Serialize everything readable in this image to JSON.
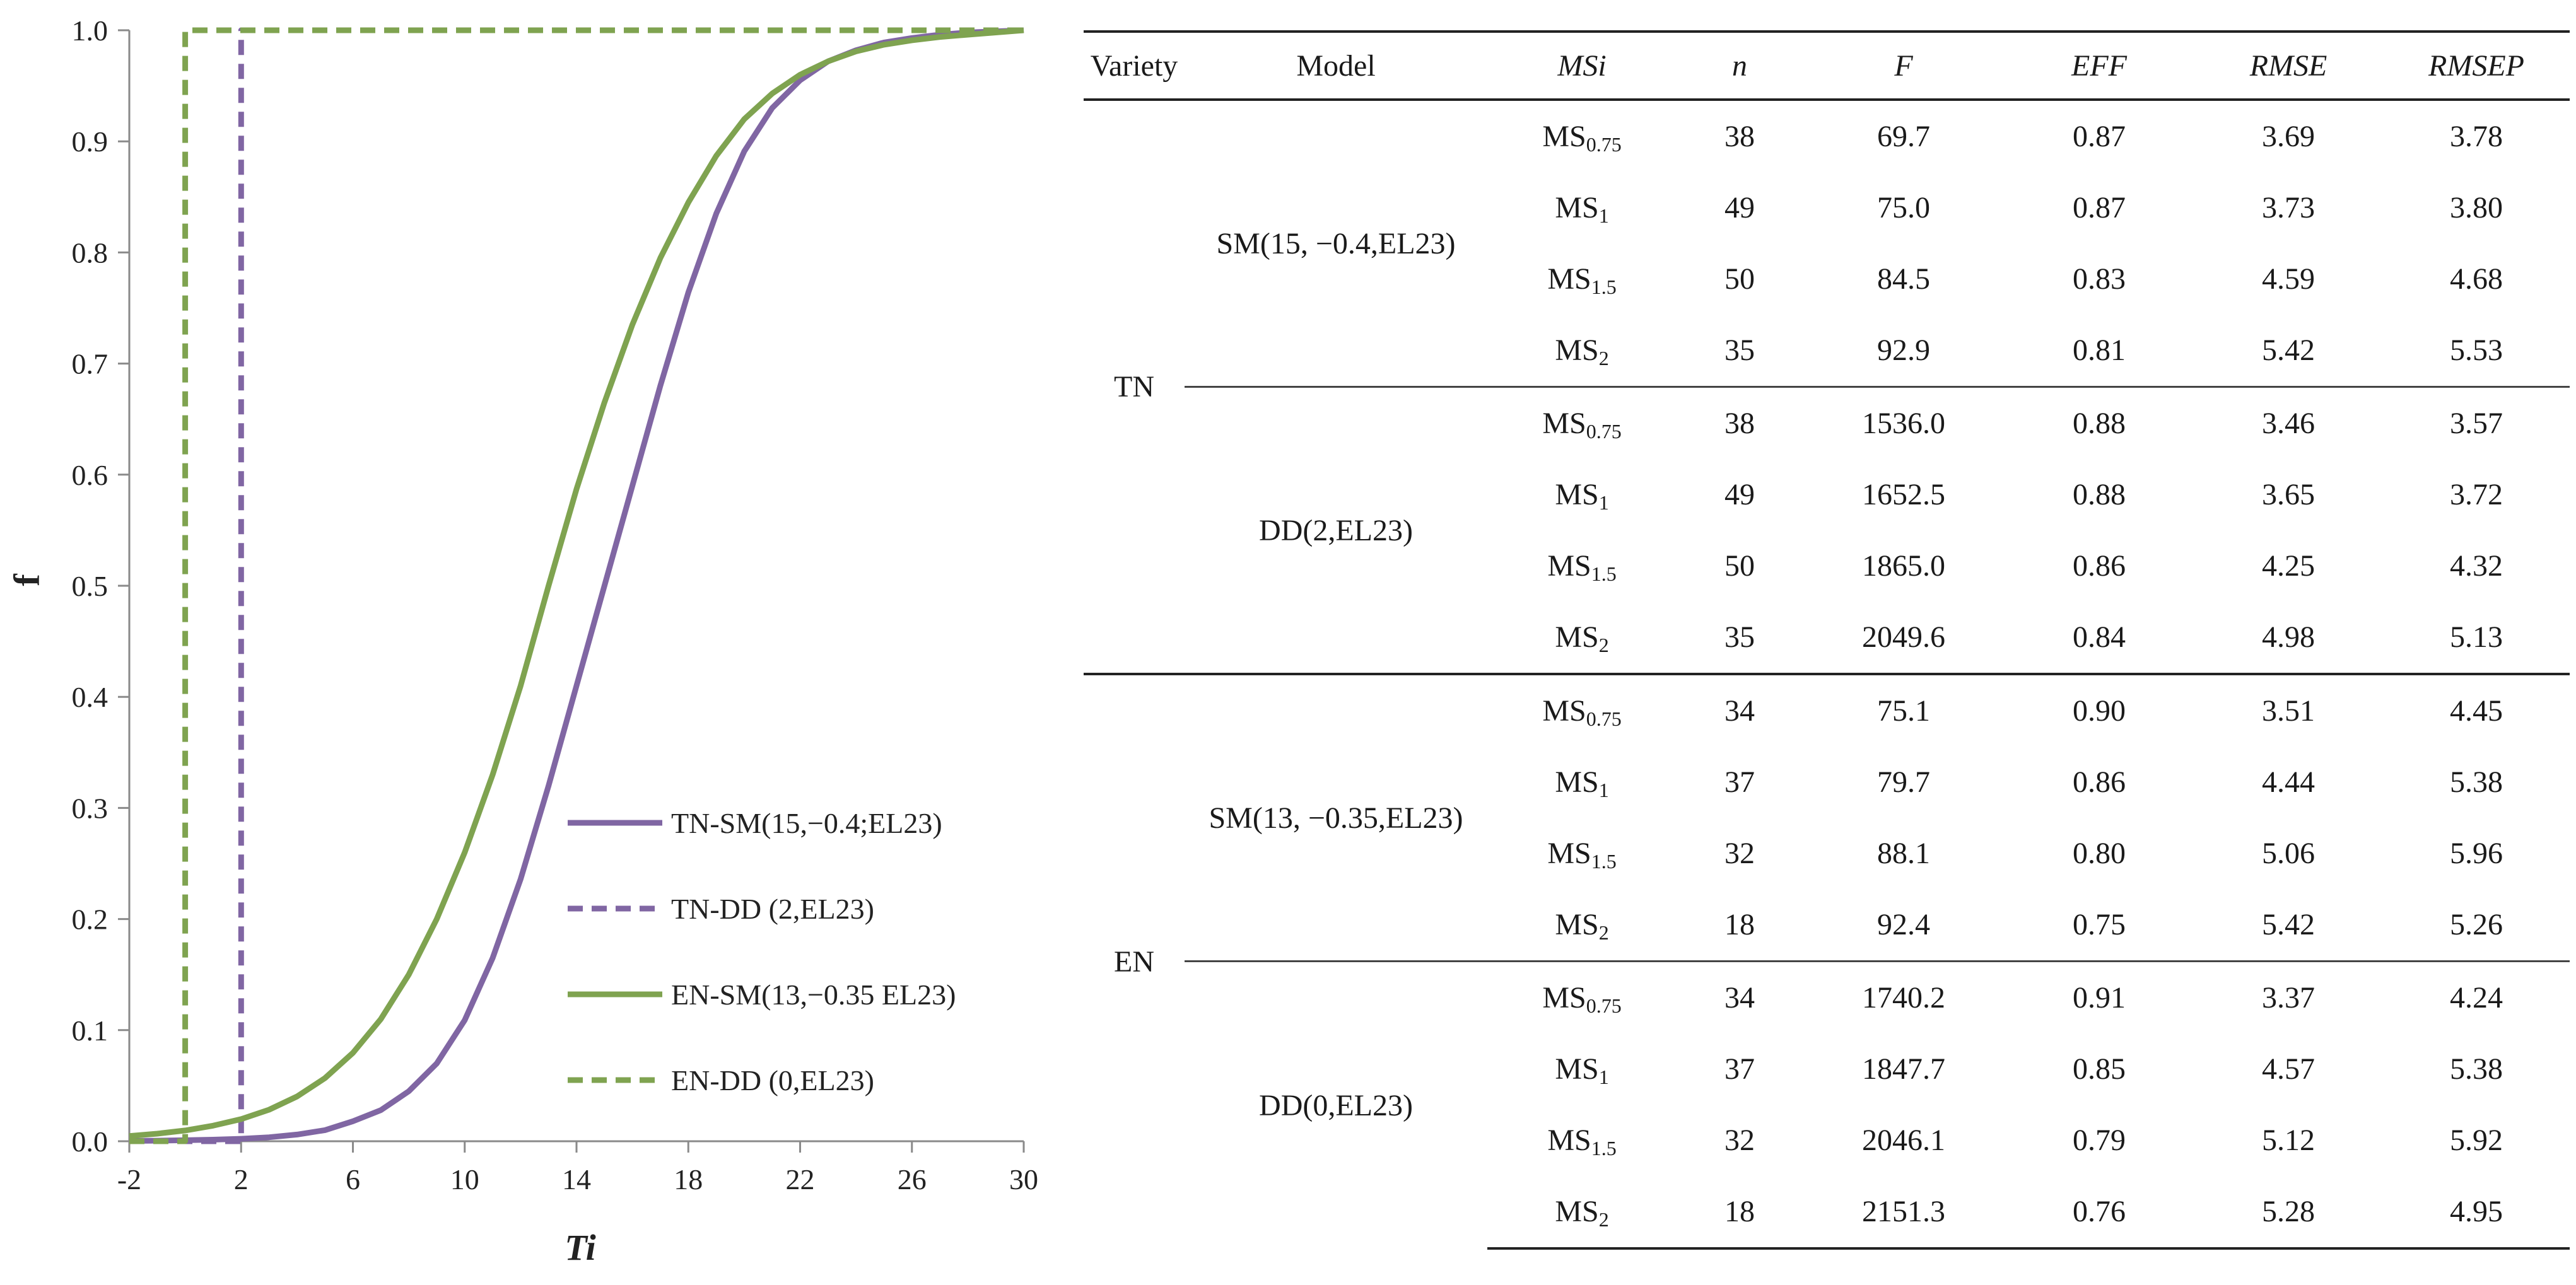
{
  "colors": {
    "tn": "#8066a3",
    "en": "#7fa350",
    "axis": "#8a8a8a"
  },
  "chart_data": {
    "type": "line",
    "xlabel": "Ti",
    "ylabel": "f",
    "xlim": [
      -2,
      30
    ],
    "ylim": [
      0,
      1.0
    ],
    "x_ticks": [
      "-2",
      "2",
      "6",
      "10",
      "14",
      "18",
      "22",
      "26",
      "30"
    ],
    "y_ticks": [
      "0.0",
      "0.1",
      "0.2",
      "0.3",
      "0.4",
      "0.5",
      "0.6",
      "0.7",
      "0.8",
      "0.9",
      "1.0"
    ],
    "legend_position": "lower-right",
    "series": [
      {
        "name": "TN-SM(15,−0.4;EL23)",
        "style": "solid",
        "color_key": "tn",
        "x": [
          -2,
          -1,
          0,
          1,
          2,
          3,
          4,
          5,
          6,
          7,
          8,
          9,
          10,
          11,
          12,
          13,
          14,
          15,
          16,
          17,
          18,
          19,
          20,
          21,
          22,
          23,
          24,
          25,
          26,
          27,
          28,
          29,
          30
        ],
        "y": [
          0.0003,
          0.0005,
          0.0009,
          0.0014,
          0.0022,
          0.0036,
          0.006,
          0.01,
          0.018,
          0.028,
          0.045,
          0.07,
          0.109,
          0.165,
          0.236,
          0.32,
          0.41,
          0.5,
          0.59,
          0.68,
          0.764,
          0.835,
          0.891,
          0.93,
          0.955,
          0.972,
          0.982,
          0.989,
          0.993,
          0.996,
          0.998,
          0.999,
          1.0
        ]
      },
      {
        "name": "TN-DD (2,EL23)",
        "style": "dashed",
        "color_key": "tn",
        "x": [
          -2,
          2,
          2,
          30
        ],
        "y": [
          0,
          0,
          1.0,
          1.0
        ]
      },
      {
        "name": "EN-SM(13,−0.35 EL23)",
        "style": "solid",
        "color_key": "en",
        "x": [
          -2,
          -1,
          0,
          1,
          2,
          3,
          4,
          5,
          6,
          7,
          8,
          9,
          10,
          11,
          12,
          13,
          14,
          15,
          16,
          17,
          18,
          19,
          20,
          21,
          22,
          23,
          24,
          25,
          26,
          27,
          28,
          29,
          30
        ],
        "y": [
          0.0047,
          0.0068,
          0.0097,
          0.014,
          0.0199,
          0.0284,
          0.0403,
          0.0568,
          0.0795,
          0.11,
          0.15,
          0.2,
          0.26,
          0.33,
          0.41,
          0.5,
          0.587,
          0.665,
          0.735,
          0.795,
          0.845,
          0.887,
          0.92,
          0.943,
          0.96,
          0.972,
          0.981,
          0.987,
          0.991,
          0.994,
          0.996,
          0.998,
          1.0
        ]
      },
      {
        "name": "EN-DD (0,EL23)",
        "style": "dashed",
        "color_key": "en",
        "x": [
          -2,
          0,
          0,
          30
        ],
        "y": [
          0,
          0,
          1.0,
          1.0
        ]
      }
    ]
  },
  "table": {
    "headers": {
      "variety": "Variety",
      "model": "Model",
      "msi": "MSi",
      "n": "n",
      "f": "F",
      "eff": "EFF",
      "rmse": "RMSE",
      "rmsep": "RMSEP"
    },
    "varieties": [
      {
        "name": "TN",
        "models": [
          {
            "name": "SM(15, −0.4,EL23)",
            "rows": [
              {
                "ms": "MS",
                "sub": "0.75",
                "n": "38",
                "f": "69.7",
                "eff": "0.87",
                "rmse": "3.69",
                "rmsep": "3.78"
              },
              {
                "ms": "MS",
                "sub": "1",
                "n": "49",
                "f": "75.0",
                "eff": "0.87",
                "rmse": "3.73",
                "rmsep": "3.80"
              },
              {
                "ms": "MS",
                "sub": "1.5",
                "n": "50",
                "f": "84.5",
                "eff": "0.83",
                "rmse": "4.59",
                "rmsep": "4.68"
              },
              {
                "ms": "MS",
                "sub": "2",
                "n": "35",
                "f": "92.9",
                "eff": "0.81",
                "rmse": "5.42",
                "rmsep": "5.53"
              }
            ]
          },
          {
            "name": "DD(2,EL23)",
            "rows": [
              {
                "ms": "MS",
                "sub": "0.75",
                "n": "38",
                "f": "1536.0",
                "eff": "0.88",
                "rmse": "3.46",
                "rmsep": "3.57"
              },
              {
                "ms": "MS",
                "sub": "1",
                "n": "49",
                "f": "1652.5",
                "eff": "0.88",
                "rmse": "3.65",
                "rmsep": "3.72"
              },
              {
                "ms": "MS",
                "sub": "1.5",
                "n": "50",
                "f": "1865.0",
                "eff": "0.86",
                "rmse": "4.25",
                "rmsep": "4.32"
              },
              {
                "ms": "MS",
                "sub": "2",
                "n": "35",
                "f": "2049.6",
                "eff": "0.84",
                "rmse": "4.98",
                "rmsep": "5.13"
              }
            ]
          }
        ]
      },
      {
        "name": "EN",
        "models": [
          {
            "name": "SM(13, −0.35,EL23)",
            "rows": [
              {
                "ms": "MS",
                "sub": "0.75",
                "n": "34",
                "f": "75.1",
                "eff": "0.90",
                "rmse": "3.51",
                "rmsep": "4.45"
              },
              {
                "ms": "MS",
                "sub": "1",
                "n": "37",
                "f": "79.7",
                "eff": "0.86",
                "rmse": "4.44",
                "rmsep": "5.38"
              },
              {
                "ms": "MS",
                "sub": "1.5",
                "n": "32",
                "f": "88.1",
                "eff": "0.80",
                "rmse": "5.06",
                "rmsep": "5.96"
              },
              {
                "ms": "MS",
                "sub": "2",
                "n": "18",
                "f": "92.4",
                "eff": "0.75",
                "rmse": "5.42",
                "rmsep": "5.26"
              }
            ]
          },
          {
            "name": "DD(0,EL23)",
            "rows": [
              {
                "ms": "MS",
                "sub": "0.75",
                "n": "34",
                "f": "1740.2",
                "eff": "0.91",
                "rmse": "3.37",
                "rmsep": "4.24"
              },
              {
                "ms": "MS",
                "sub": "1",
                "n": "37",
                "f": "1847.7",
                "eff": "0.85",
                "rmse": "4.57",
                "rmsep": "5.38"
              },
              {
                "ms": "MS",
                "sub": "1.5",
                "n": "32",
                "f": "2046.1",
                "eff": "0.79",
                "rmse": "5.12",
                "rmsep": "5.92"
              },
              {
                "ms": "MS",
                "sub": "2",
                "n": "18",
                "f": "2151.3",
                "eff": "0.76",
                "rmse": "5.28",
                "rmsep": "4.95"
              }
            ]
          }
        ]
      }
    ]
  }
}
